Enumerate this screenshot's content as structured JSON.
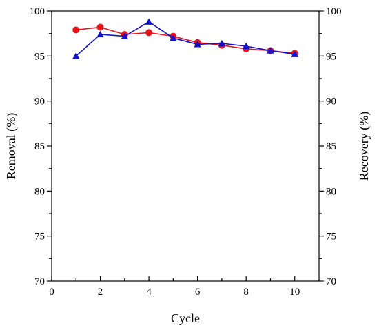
{
  "chart_data": {
    "type": "line",
    "title": "",
    "xlabel": "Cycle",
    "ylabel": "Removal (%)",
    "y2label": "Recovery (%)",
    "xlim": [
      0,
      11
    ],
    "ylim": [
      70,
      100
    ],
    "y2lim": [
      70,
      100
    ],
    "x_ticks": [
      0,
      2,
      4,
      6,
      8,
      10
    ],
    "y_ticks": [
      70,
      75,
      80,
      85,
      90,
      95,
      100
    ],
    "grid": false,
    "legend": "none",
    "x": [
      1,
      2,
      3,
      4,
      5,
      6,
      7,
      8,
      9,
      10
    ],
    "series": [
      {
        "axis": "left",
        "color": "#e8141b",
        "marker": "circle",
        "values": [
          97.9,
          98.2,
          97.4,
          97.6,
          97.2,
          96.5,
          96.2,
          95.8,
          95.6,
          95.3
        ]
      },
      {
        "axis": "right",
        "color": "#1212c8",
        "marker": "triangle",
        "values": [
          95.0,
          97.4,
          97.2,
          98.8,
          97.0,
          96.3,
          96.4,
          96.1,
          95.6,
          95.2
        ]
      }
    ]
  }
}
